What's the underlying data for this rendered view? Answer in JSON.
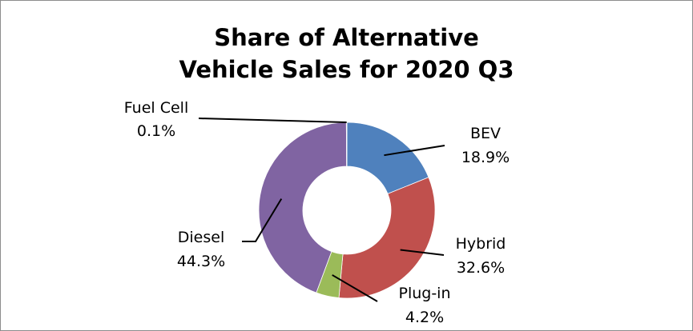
{
  "chart_data": {
    "type": "donut",
    "title_lines": [
      "Share of Alternative",
      "Vehicle Sales for 2020 Q3"
    ],
    "start": "top",
    "direction": "clockwise",
    "slices": [
      {
        "label": "BEV",
        "value": 18.9,
        "value_text": "18.9%",
        "color": "#4f81bd"
      },
      {
        "label": "Hybrid",
        "value": 32.6,
        "value_text": "32.6%",
        "color": "#c0504d"
      },
      {
        "label": "Plug-in",
        "value": 4.2,
        "value_text": "4.2%",
        "color": "#9bbb59"
      },
      {
        "label": "Diesel",
        "value": 44.3,
        "value_text": "44.3%",
        "color": "#8064a2"
      },
      {
        "label": "Fuel Cell",
        "value": 0.1,
        "value_text": "0.1%",
        "color": "#4bacc6"
      }
    ]
  }
}
